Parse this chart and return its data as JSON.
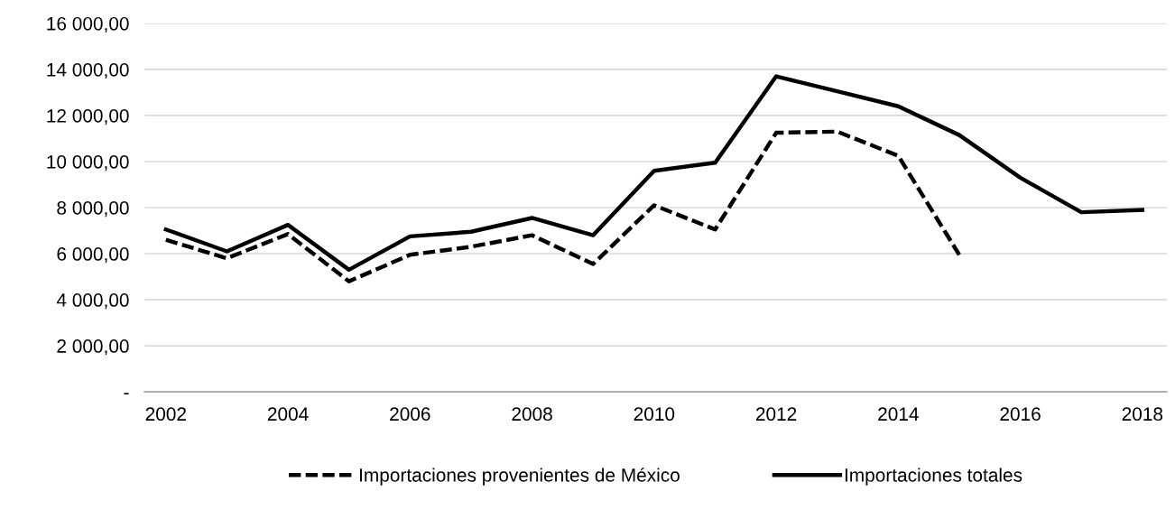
{
  "chart_data": {
    "type": "line",
    "categories": [
      "2002",
      null,
      "2004",
      null,
      "2006",
      null,
      "2008",
      null,
      "2010",
      null,
      "2012",
      null,
      "2014",
      null,
      "2016",
      null,
      "2018"
    ],
    "series": [
      {
        "name": "Importaciones provenientes de México",
        "color": "#000000",
        "line_style": "dashed",
        "values": [
          6600,
          5800,
          6850,
          4800,
          5950,
          6300,
          6800,
          5550,
          8100,
          7050,
          11250,
          11300,
          10250,
          5950,
          null,
          null,
          null
        ]
      },
      {
        "name": "Importaciones totales",
        "color": "#000000",
        "line_style": "solid",
        "values": [
          7050,
          6100,
          7250,
          5300,
          6750,
          6950,
          7550,
          6800,
          9600,
          9950,
          13700,
          13050,
          12400,
          11150,
          9300,
          7800,
          7900
        ]
      }
    ],
    "ylim": [
      0,
      16000
    ],
    "yticks": [
      {
        "value": 0,
        "label": "-"
      },
      {
        "value": 2000,
        "label": "2 000,00"
      },
      {
        "value": 4000,
        "label": "4 000,00"
      },
      {
        "value": 6000,
        "label": "6 000,00"
      },
      {
        "value": 8000,
        "label": "8 000,00"
      },
      {
        "value": 10000,
        "label": "10 000,00"
      },
      {
        "value": 12000,
        "label": "12 000,00"
      },
      {
        "value": 14000,
        "label": "14 000,00"
      },
      {
        "value": 16000,
        "label": "16 000,00"
      }
    ],
    "grid": "y",
    "legend": "bottom",
    "marker": "none"
  }
}
